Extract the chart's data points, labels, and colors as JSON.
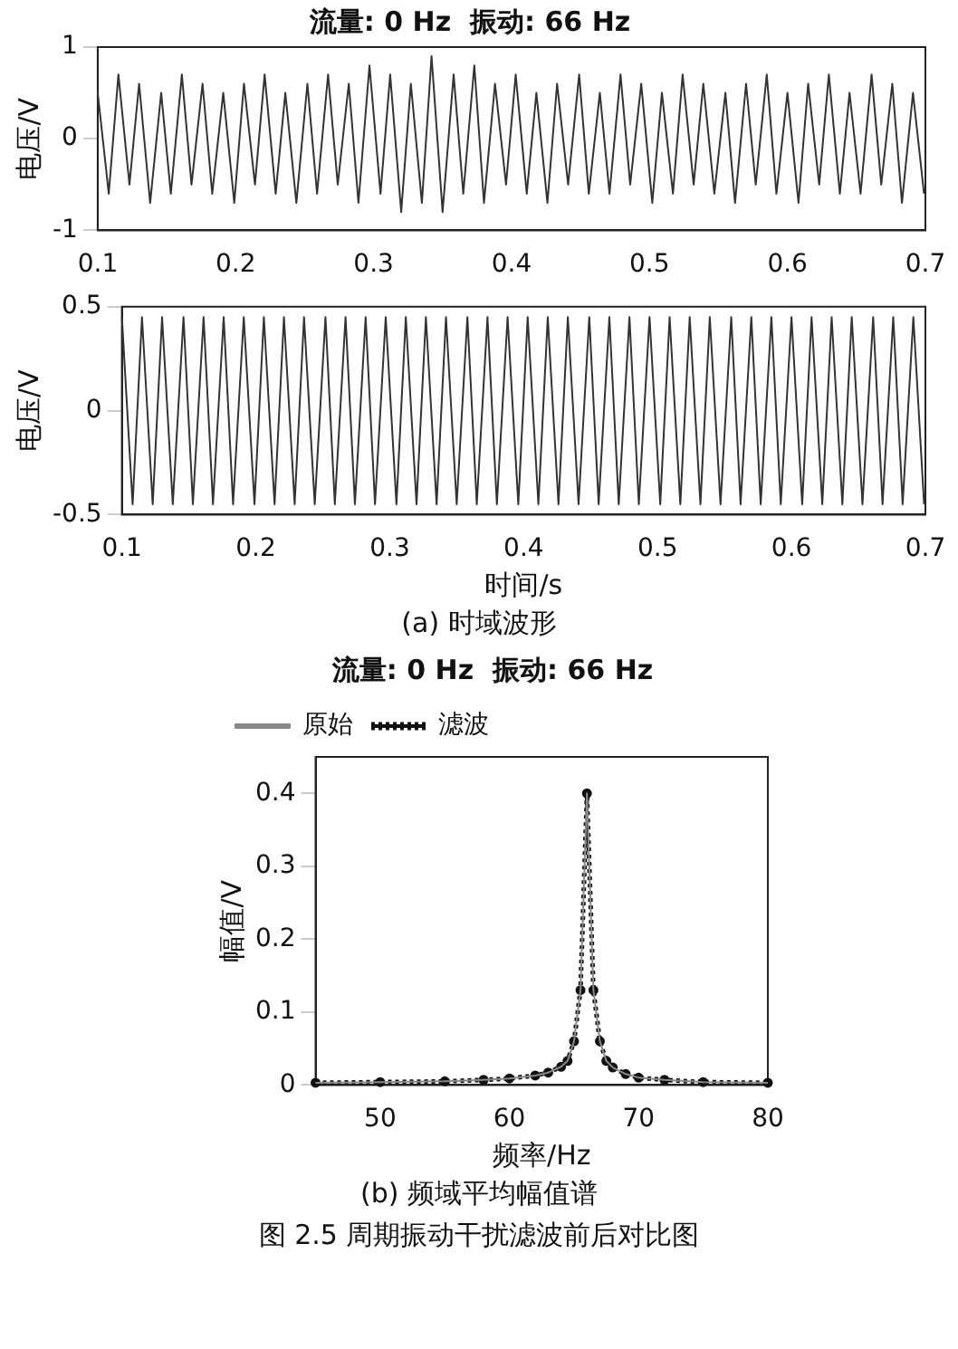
{
  "chart_data": [
    {
      "type": "line",
      "title": "流量: 0 Hz  振动: 66 Hz",
      "ylabel": "电压/V",
      "color": "#333333",
      "x": [
        0.1,
        0.108,
        0.115,
        0.123,
        0.13,
        0.138,
        0.146,
        0.153,
        0.161,
        0.168,
        0.176,
        0.183,
        0.191,
        0.199,
        0.206,
        0.214,
        0.221,
        0.229,
        0.236,
        0.244,
        0.252,
        0.259,
        0.267,
        0.274,
        0.282,
        0.289,
        0.297,
        0.305,
        0.312,
        0.32,
        0.327,
        0.335,
        0.342,
        0.35,
        0.358,
        0.365,
        0.373,
        0.38,
        0.388,
        0.396,
        0.403,
        0.411,
        0.418,
        0.426,
        0.433,
        0.441,
        0.449,
        0.456,
        0.464,
        0.471,
        0.479,
        0.486,
        0.494,
        0.502,
        0.509,
        0.517,
        0.524,
        0.532,
        0.539,
        0.547,
        0.555,
        0.562,
        0.57,
        0.577,
        0.585,
        0.592,
        0.6,
        0.608,
        0.615,
        0.623,
        0.63,
        0.638,
        0.645,
        0.653,
        0.661,
        0.668,
        0.676,
        0.683,
        0.691,
        0.699
      ],
      "values": [
        0.5,
        -0.6,
        0.7,
        -0.5,
        0.6,
        -0.7,
        0.5,
        -0.6,
        0.7,
        -0.5,
        0.6,
        -0.6,
        0.5,
        -0.7,
        0.6,
        -0.5,
        0.7,
        -0.6,
        0.5,
        -0.7,
        0.6,
        -0.6,
        0.7,
        -0.5,
        0.6,
        -0.7,
        0.8,
        -0.6,
        0.7,
        -0.8,
        0.6,
        -0.7,
        0.9,
        -0.8,
        0.7,
        -0.6,
        0.8,
        -0.7,
        0.6,
        -0.5,
        0.7,
        -0.6,
        0.5,
        -0.7,
        0.6,
        -0.5,
        0.7,
        -0.6,
        0.5,
        -0.6,
        0.7,
        -0.5,
        0.6,
        -0.7,
        0.5,
        -0.6,
        0.7,
        -0.5,
        0.6,
        -0.6,
        0.5,
        -0.7,
        0.6,
        -0.5,
        0.7,
        -0.6,
        0.5,
        -0.7,
        0.6,
        -0.5,
        0.7,
        -0.6,
        0.5,
        -0.6,
        0.7,
        -0.5,
        0.6,
        -0.7,
        0.5,
        -0.6
      ],
      "xlim": [
        0.1,
        0.7
      ],
      "xticks": [
        0.1,
        0.2,
        0.3,
        0.4,
        0.5,
        0.6,
        0.7
      ],
      "ylim": [
        -1,
        1
      ],
      "yticks": [
        -1,
        0,
        1
      ],
      "grid": false,
      "legend": false
    },
    {
      "type": "line",
      "ylabel": "电压/V",
      "xlabel": "时间/s",
      "color": "#333333",
      "x": [
        0.1,
        0.108,
        0.115,
        0.123,
        0.13,
        0.138,
        0.146,
        0.153,
        0.161,
        0.168,
        0.176,
        0.183,
        0.191,
        0.199,
        0.206,
        0.214,
        0.221,
        0.229,
        0.236,
        0.244,
        0.252,
        0.259,
        0.267,
        0.274,
        0.282,
        0.289,
        0.297,
        0.305,
        0.312,
        0.32,
        0.327,
        0.335,
        0.342,
        0.35,
        0.358,
        0.365,
        0.373,
        0.38,
        0.388,
        0.396,
        0.403,
        0.411,
        0.418,
        0.426,
        0.433,
        0.441,
        0.449,
        0.456,
        0.464,
        0.471,
        0.479,
        0.486,
        0.494,
        0.502,
        0.509,
        0.517,
        0.524,
        0.532,
        0.539,
        0.547,
        0.555,
        0.562,
        0.57,
        0.577,
        0.585,
        0.592,
        0.6,
        0.608,
        0.615,
        0.623,
        0.63,
        0.638,
        0.645,
        0.653,
        0.661,
        0.668,
        0.676,
        0.683,
        0.691,
        0.699
      ],
      "values": [
        0.45,
        -0.45,
        0.45,
        -0.45,
        0.45,
        -0.45,
        0.45,
        -0.45,
        0.45,
        -0.45,
        0.45,
        -0.45,
        0.45,
        -0.45,
        0.45,
        -0.45,
        0.45,
        -0.45,
        0.45,
        -0.45,
        0.45,
        -0.45,
        0.45,
        -0.45,
        0.45,
        -0.45,
        0.45,
        -0.45,
        0.45,
        -0.45,
        0.45,
        -0.45,
        0.45,
        -0.45,
        0.45,
        -0.45,
        0.45,
        -0.45,
        0.45,
        -0.45,
        0.45,
        -0.45,
        0.45,
        -0.45,
        0.45,
        -0.45,
        0.45,
        -0.45,
        0.45,
        -0.45,
        0.45,
        -0.45,
        0.45,
        -0.45,
        0.45,
        -0.45,
        0.45,
        -0.45,
        0.45,
        -0.45,
        0.45,
        -0.45,
        0.45,
        -0.45,
        0.45,
        -0.45,
        0.45,
        -0.45,
        0.45,
        -0.45,
        0.45,
        -0.45,
        0.45,
        -0.45,
        0.45,
        -0.45,
        0.45,
        -0.45,
        0.45,
        -0.45
      ],
      "xlim": [
        0.1,
        0.7
      ],
      "xticks": [
        0.1,
        0.2,
        0.3,
        0.4,
        0.5,
        0.6,
        0.7
      ],
      "ylim": [
        -0.5,
        0.5
      ],
      "yticks": [
        -0.5,
        0,
        0.5
      ],
      "grid": false,
      "legend": false,
      "annotations": [
        "(a)  时域波形"
      ]
    },
    {
      "type": "line",
      "title": "流量: 0 Hz  振动: 66 Hz",
      "xlabel": "频率/Hz",
      "ylabel": "幅值/V",
      "x": [
        45,
        50,
        55,
        58,
        60,
        62,
        63,
        64,
        64.5,
        65,
        65.5,
        66,
        66.5,
        67,
        67.5,
        68,
        69,
        70,
        72,
        75,
        80
      ],
      "series": [
        {
          "name": "原始",
          "color": "#888888",
          "line_style": "solid",
          "marker": "none",
          "values": [
            0.003,
            0.004,
            0.005,
            0.007,
            0.009,
            0.013,
            0.017,
            0.025,
            0.033,
            0.06,
            0.13,
            0.4,
            0.13,
            0.06,
            0.033,
            0.024,
            0.015,
            0.01,
            0.007,
            0.004,
            0.003
          ]
        },
        {
          "name": "滤波",
          "color": "#111111",
          "line_style": "dotted",
          "marker": "circle",
          "values": [
            0.003,
            0.004,
            0.005,
            0.007,
            0.009,
            0.013,
            0.017,
            0.025,
            0.033,
            0.06,
            0.13,
            0.4,
            0.13,
            0.06,
            0.033,
            0.024,
            0.015,
            0.01,
            0.007,
            0.004,
            0.003
          ]
        }
      ],
      "xlim": [
        45,
        80
      ],
      "xticks": [
        50,
        60,
        70,
        80
      ],
      "ylim": [
        0,
        0.45
      ],
      "yticks": [
        0,
        0.1,
        0.2,
        0.3,
        0.4
      ],
      "grid": false,
      "legend": "top left",
      "annotations": [
        "(b)  频域平均幅值谱",
        "图 2.5  周期振动干扰滤波前后对比图"
      ]
    }
  ]
}
